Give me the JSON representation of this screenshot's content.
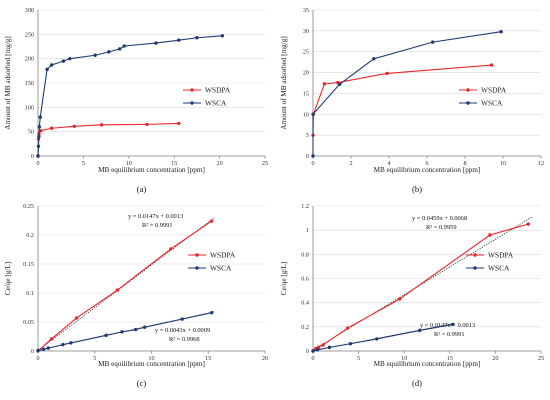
{
  "colors": {
    "WSDPA": "#e8262d",
    "WSCA": "#1f3a73",
    "trend": "#222222"
  },
  "chart_data": [
    {
      "type": "line",
      "panel": "(a)",
      "xlabel": "MB equilibrium  concentration [ppm]",
      "ylabel": "Amount of MB adsorbed [mg/g]",
      "xlim": [
        0,
        25
      ],
      "ylim": [
        0,
        300
      ],
      "xticks": [
        0,
        5,
        10,
        15,
        20,
        25
      ],
      "yticks": [
        0,
        50,
        100,
        150,
        200,
        250,
        300
      ],
      "grid": true,
      "legend_position": "center-right",
      "series": [
        {
          "name": "WSDPA",
          "color_key": "WSDPA",
          "x": [
            0,
            0.05,
            0.1,
            0.3,
            1.5,
            4,
            7,
            12,
            15.5
          ],
          "y": [
            0,
            35,
            45,
            52,
            57,
            61,
            64,
            65,
            67
          ]
        },
        {
          "name": "WSCA",
          "color_key": "WSCA",
          "x": [
            0,
            0.05,
            0.1,
            0.15,
            0.25,
            1,
            1.5,
            2.8,
            3.5,
            6.3,
            7.8,
            9,
            9.5,
            13,
            15.5,
            17.5,
            20.3
          ],
          "y": [
            0,
            20,
            40,
            60,
            80,
            178,
            187,
            195,
            200,
            207,
            214,
            220,
            226,
            232,
            238,
            243,
            247
          ]
        }
      ]
    },
    {
      "type": "line",
      "panel": "(b)",
      "xlabel": "MB equilibrium  concentration [ppm]",
      "ylabel": "Amount of MB adsorbed [mg/g]",
      "xlim": [
        0,
        12
      ],
      "ylim": [
        0,
        35
      ],
      "xticks": [
        0,
        2,
        4,
        6,
        8,
        10,
        12
      ],
      "yticks": [
        0,
        5,
        10,
        15,
        20,
        25,
        30,
        35
      ],
      "grid": true,
      "legend_position": "center-right",
      "series": [
        {
          "name": "WSDPA",
          "color_key": "WSDPA",
          "x": [
            0,
            0.02,
            0.6,
            1.3,
            3.9,
            9.4
          ],
          "y": [
            5,
            10,
            17.3,
            17.6,
            19.8,
            21.8
          ]
        },
        {
          "name": "WSCA",
          "color_key": "WSCA",
          "x": [
            0,
            0,
            1.4,
            3.2,
            6.3,
            9.9
          ],
          "y": [
            0,
            10,
            17.2,
            23.3,
            27.3,
            29.8
          ]
        }
      ]
    },
    {
      "type": "scatter",
      "panel": "(c)",
      "xlabel": "MB equilibrium  concentration [ppm]",
      "ylabel": "Ce/qe [g/L]",
      "xlim": [
        0,
        20
      ],
      "ylim": [
        0,
        0.25
      ],
      "xticks": [
        0,
        5,
        10,
        15,
        20
      ],
      "yticks": [
        0,
        0.05,
        0.1,
        0.15,
        0.2,
        0.25
      ],
      "grid": true,
      "legend_position": "center-right",
      "series": [
        {
          "name": "WSDPA",
          "color_key": "WSDPA",
          "x": [
            0,
            1.2,
            3.4,
            7,
            11.7,
            15.3
          ],
          "y": [
            0,
            0.021,
            0.057,
            0.105,
            0.176,
            0.224
          ]
        },
        {
          "name": "WSCA",
          "color_key": "WSCA",
          "x": [
            0,
            0.5,
            0.9,
            2.2,
            2.9,
            6,
            7.4,
            8.6,
            9.4,
            12.7,
            15.3
          ],
          "y": [
            0.001,
            0.003,
            0.005,
            0.011,
            0.014,
            0.027,
            0.033,
            0.037,
            0.041,
            0.055,
            0.066
          ]
        }
      ],
      "trendlines": [
        {
          "equation": "y = 0.0147x + 0.0013",
          "r2": "R² = 0.9991",
          "slope": 0.0147,
          "intercept": 0.0013,
          "x": [
            0,
            15.5
          ]
        },
        {
          "equation": "y = 0.0043x + 0.0009",
          "r2": "R² = 0.9968",
          "slope": 0.0043,
          "intercept": 0.0009,
          "x": [
            0,
            15.5
          ]
        }
      ]
    },
    {
      "type": "scatter",
      "panel": "(d)",
      "xlabel": "MB equilibrium  concentration [ppm]",
      "ylabel": "Ce/qe [g/L]",
      "xlim": [
        0,
        25
      ],
      "ylim": [
        0,
        1.2
      ],
      "xticks": [
        0,
        5,
        10,
        15,
        20,
        25
      ],
      "yticks": [
        0,
        0.2,
        0.4,
        0.6,
        0.8,
        1,
        1.2
      ],
      "yticklabels": [
        "0",
        "0.2",
        "0.4",
        "0.6",
        "0.8",
        "1",
        "1.2"
      ],
      "grid": true,
      "legend_position": "center-right",
      "series": [
        {
          "name": "WSDPA",
          "color_key": "WSDPA",
          "x": [
            0,
            0.3,
            0.6,
            1.1,
            3.8,
            9.5,
            19.4,
            23.6
          ],
          "y": [
            0,
            0.02,
            0.03,
            0.05,
            0.19,
            0.43,
            0.96,
            1.05
          ]
        },
        {
          "name": "WSCA",
          "color_key": "WSCA",
          "x": [
            0,
            0.5,
            1.8,
            4.1,
            7,
            11.7,
            15.3
          ],
          "y": [
            0,
            0.01,
            0.03,
            0.06,
            0.1,
            0.17,
            0.22
          ]
        }
      ],
      "trendlines": [
        {
          "equation": "y = 0.0459x + 0.0068",
          "r2": "R² = 0.9959",
          "slope": 0.0459,
          "intercept": 0.0068,
          "x": [
            0,
            24
          ]
        },
        {
          "equation": "y = 0.0147x + 0.0013",
          "r2": "R² = 0.9991",
          "slope": 0.0147,
          "intercept": 0.0013,
          "x": [
            0,
            15.5
          ]
        }
      ]
    }
  ]
}
